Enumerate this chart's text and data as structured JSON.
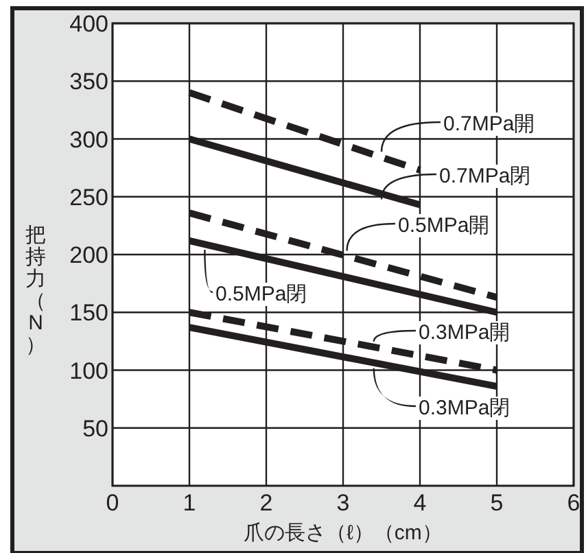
{
  "chart_data": {
    "type": "line",
    "xlabel": "爪の長さ（ℓ）（cm）",
    "ylabel": "把持力（N）",
    "xlim": [
      0,
      6
    ],
    "ylim": [
      0,
      400
    ],
    "xticks": [
      0,
      1,
      2,
      3,
      4,
      5,
      6
    ],
    "yticks": [
      50,
      100,
      150,
      200,
      250,
      300,
      350,
      400
    ],
    "grid": true,
    "legend": "right",
    "marker": "none",
    "series": [
      {
        "name": "0.7MPa開",
        "color": "#231f20",
        "line_style": "dashed",
        "x": [
          1,
          4
        ],
        "values": [
          340,
          273
        ]
      },
      {
        "name": "0.7MPa閉",
        "color": "#231f20",
        "line_style": "solid",
        "x": [
          1,
          4
        ],
        "values": [
          300,
          243
        ]
      },
      {
        "name": "0.5MPa開",
        "color": "#231f20",
        "line_style": "dashed",
        "x": [
          1,
          5
        ],
        "values": [
          236,
          163
        ]
      },
      {
        "name": "0.5MPa閉",
        "color": "#231f20",
        "line_style": "solid",
        "x": [
          1,
          5
        ],
        "values": [
          212,
          150
        ]
      },
      {
        "name": "0.3MPa開",
        "color": "#231f20",
        "line_style": "dashed",
        "x": [
          1,
          5
        ],
        "values": [
          150,
          100
        ]
      },
      {
        "name": "0.3MPa閉",
        "color": "#231f20",
        "line_style": "solid",
        "x": [
          1,
          5
        ],
        "values": [
          137,
          86
        ]
      }
    ]
  }
}
